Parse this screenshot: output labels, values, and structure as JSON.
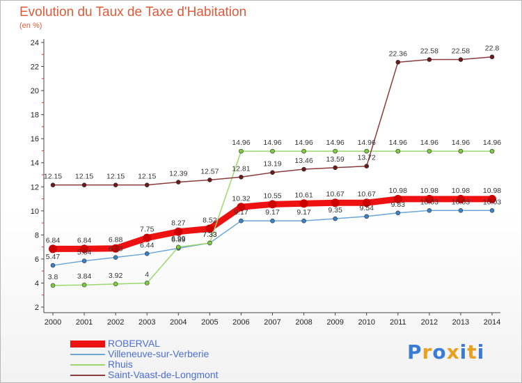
{
  "title": "Evolution du Taux de Taxe d'Habitation",
  "subtitle": "(en %)",
  "logo": {
    "text": "Proxiti",
    "colors": [
      "#3a7bd5",
      "#e8a020",
      "#3a7bd5",
      "#e8a020",
      "#3a7bd5",
      "#e8a020",
      "#3a7bd5"
    ]
  },
  "chart_data": {
    "type": "line",
    "title": "Evolution du Taux de Taxe d'Habitation",
    "ylabel": "(en %)",
    "xlabel": "",
    "x": [
      "2000",
      "2001",
      "2002",
      "2003",
      "2004",
      "2005",
      "2006",
      "2007",
      "2008",
      "2009",
      "2010",
      "2011",
      "2012",
      "2013",
      "2014"
    ],
    "ylim": [
      2,
      24
    ],
    "yticks": [
      "2",
      "4",
      "6",
      "8",
      "10",
      "12",
      "14",
      "16",
      "18",
      "20",
      "22",
      "24"
    ],
    "grid": false,
    "legend_position": "bottom-left",
    "series": [
      {
        "name": "ROBERVAL",
        "color": "#ee1111",
        "point_color": "#ee1111",
        "values": [
          6.84,
          6.84,
          6.88,
          7.75,
          8.27,
          8.52,
          10.32,
          10.55,
          10.61,
          10.67,
          10.67,
          10.98,
          10.98,
          10.98,
          10.98
        ],
        "labels": [
          "6.84",
          "6.84",
          "6.88",
          "7.75",
          "8.27",
          "8.52",
          "10.32",
          "10.55",
          "10.61",
          "10.67",
          "10.67",
          "10.98",
          "10.98",
          "10.98",
          "10.98"
        ]
      },
      {
        "name": "Villeneuve-sur-Verberie",
        "color": "#6aa6d6",
        "point_color": "#3a82c4",
        "values": [
          5.47,
          5.84,
          6.13,
          6.44,
          6.89,
          7.33,
          9.17,
          9.17,
          9.17,
          9.35,
          9.54,
          9.83,
          10.03,
          10.03,
          10.03
        ],
        "labels": [
          "5.47",
          "5.84",
          "6.13",
          "6.44",
          "6.89",
          "7.33",
          "9.17",
          "9.17",
          "9.17",
          "9.35",
          "9.54",
          "9.83",
          "10.03",
          "10.03",
          "10.03"
        ]
      },
      {
        "name": "Rhuis",
        "color": "#9ad96a",
        "point_color": "#7ccc3e",
        "values": [
          3.8,
          3.84,
          3.92,
          4,
          6.99,
          7.33,
          14.96,
          14.96,
          14.96,
          14.96,
          14.96,
          14.96,
          14.96,
          14.96,
          14.96
        ],
        "labels": [
          "3.8",
          "3.84",
          "3.92",
          "4",
          "6.99",
          "7.33",
          "14.96",
          "14.96",
          "14.96",
          "14.96",
          "14.96",
          "14.96",
          "14.96",
          "14.96",
          "14.96"
        ]
      },
      {
        "name": "Saint-Vaast-de-Longmont",
        "color": "#8b3a3a",
        "point_color": "#6b1a1a",
        "values": [
          12.15,
          12.15,
          12.15,
          12.15,
          12.39,
          12.57,
          12.81,
          13.19,
          13.46,
          13.59,
          13.72,
          22.36,
          22.58,
          22.58,
          22.8
        ],
        "labels": [
          "12.15",
          "12.15",
          "12.15",
          "12.15",
          "12.39",
          "12.57",
          "12.81",
          "13.19",
          "13.46",
          "13.59",
          "13.72",
          "22.36",
          "22.58",
          "22.58",
          "22.8"
        ]
      }
    ]
  }
}
